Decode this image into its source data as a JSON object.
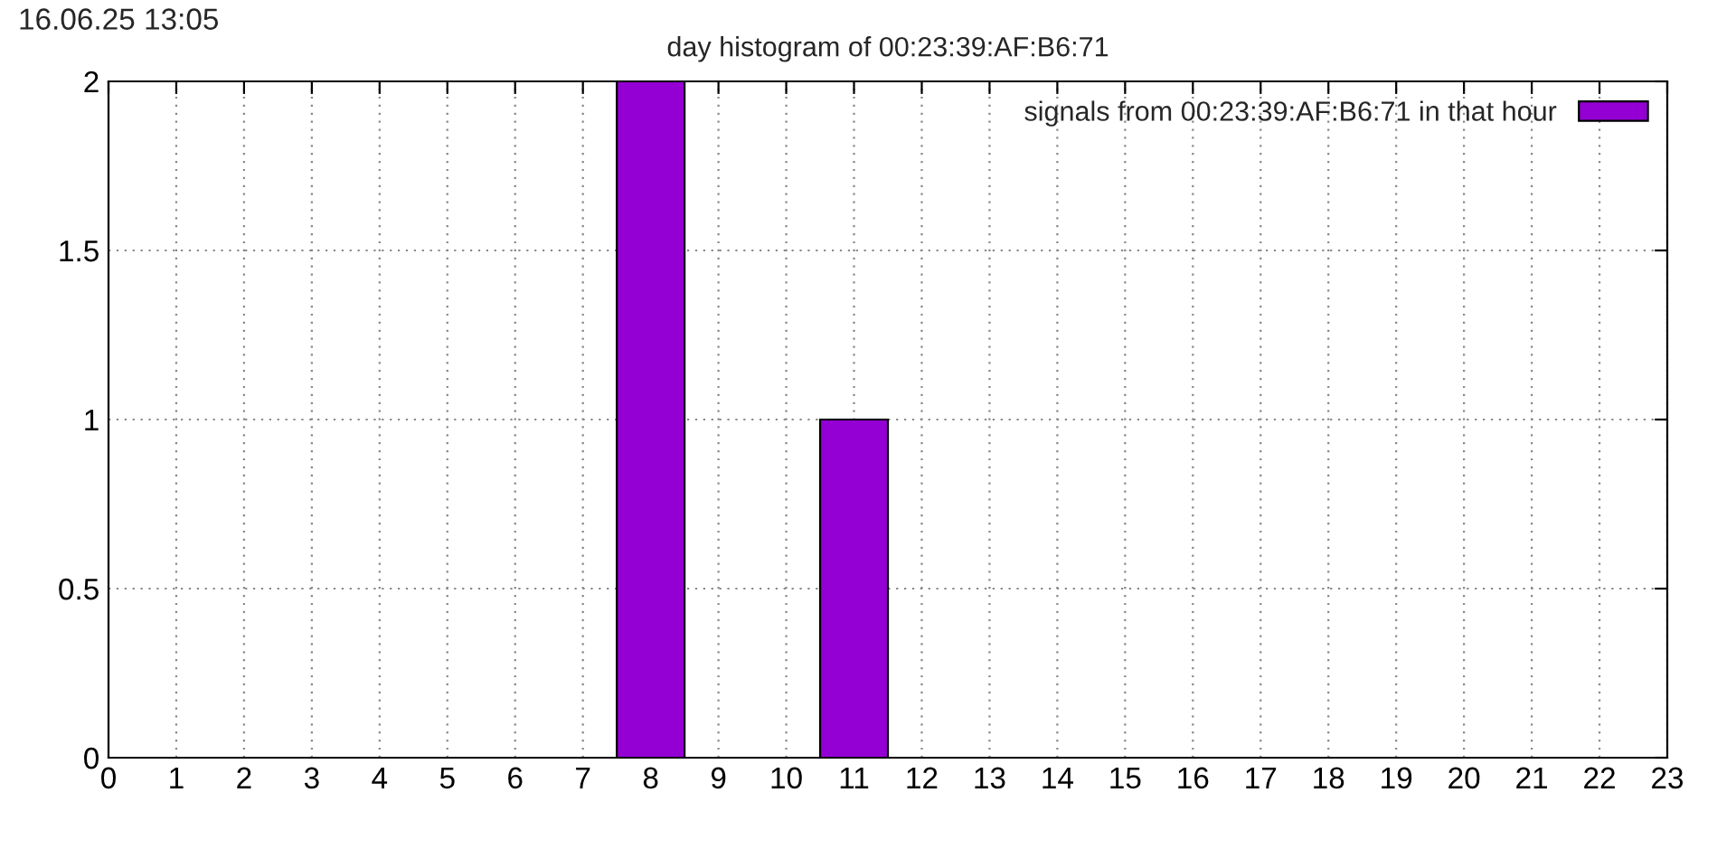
{
  "chart_data": {
    "type": "bar",
    "title": "day histogram of 00:23:39:AF:B6:71",
    "annotations": [
      "16.06.25 13:05"
    ],
    "x": [
      8,
      11
    ],
    "series": [
      {
        "name": "signals from 00:23:39:AF:B6:71 in that hour",
        "color": "#9400d3",
        "values": [
          2,
          1
        ]
      }
    ],
    "xlim": [
      0,
      23
    ],
    "xticks": [
      0,
      1,
      2,
      3,
      4,
      5,
      6,
      7,
      8,
      9,
      10,
      11,
      12,
      13,
      14,
      15,
      16,
      17,
      18,
      19,
      20,
      21,
      22,
      23
    ],
    "ylim": [
      0,
      2
    ],
    "yticks": [
      0,
      0.5,
      1,
      1.5,
      2
    ],
    "grid": true,
    "legend": "top right"
  }
}
